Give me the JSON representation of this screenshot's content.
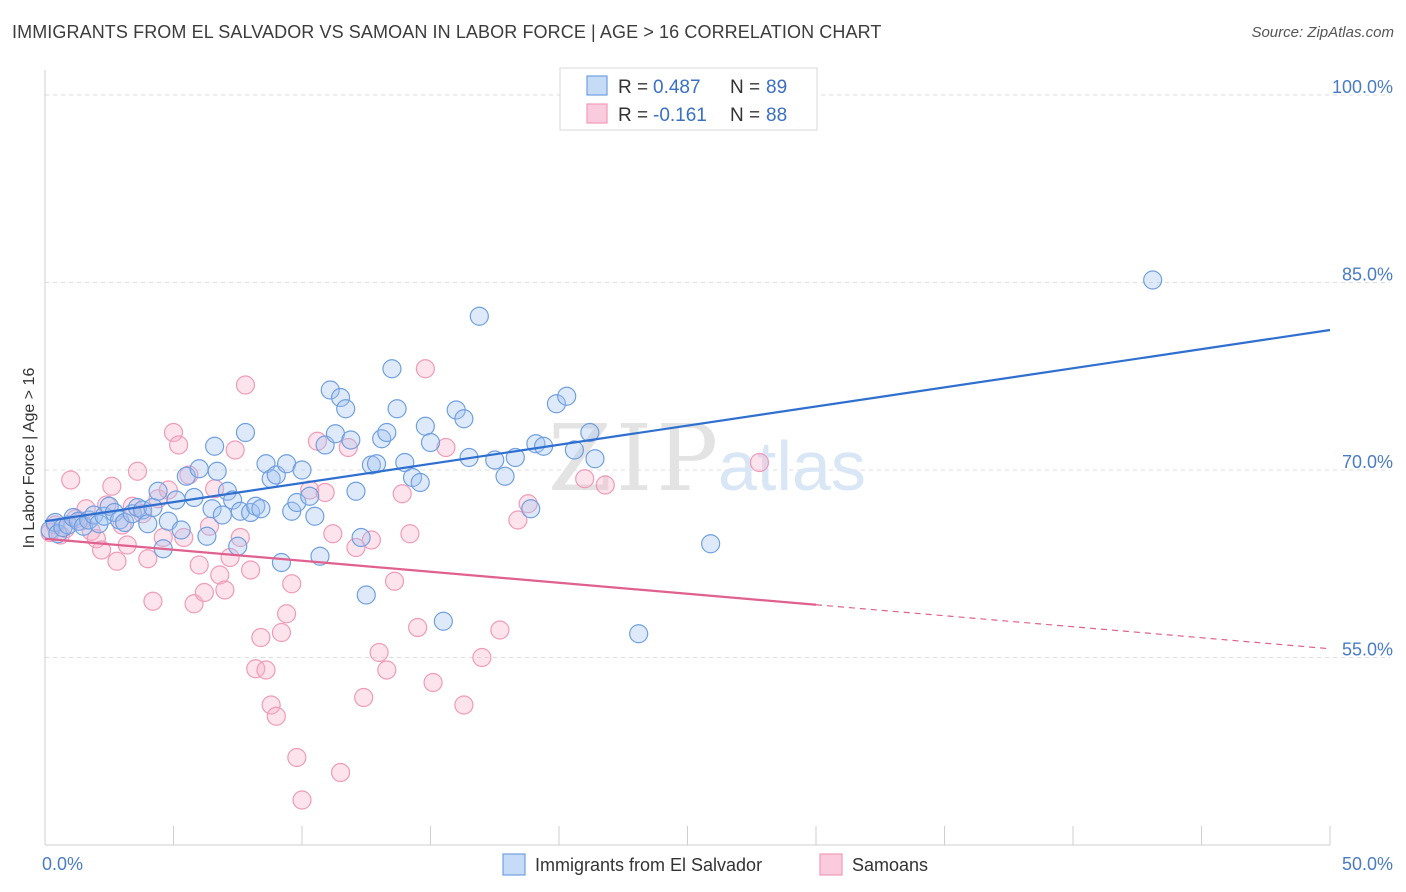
{
  "title": "IMMIGRANTS FROM EL SALVADOR VS SAMOAN IN LABOR FORCE | AGE > 16 CORRELATION CHART",
  "source": "Source: ZipAtlas.com",
  "watermark": {
    "zip": "ZIP",
    "atlas": "atlas"
  },
  "colors": {
    "blue": "#6f9fe0",
    "blue_line": "#2e6fd0",
    "pink": "#f09ab8",
    "pink_line": "#e0608e",
    "tick_text": "#4a7cc4"
  },
  "legend": {
    "rows": [
      {
        "r_label": "R = ",
        "r_value": "0.487",
        "n_label": "N = ",
        "n_value": "89"
      },
      {
        "r_label": "R = ",
        "r_value": "-0.161",
        "n_label": "N = ",
        "n_value": "88"
      }
    ]
  },
  "chart_data": {
    "type": "scatter",
    "title": "IMMIGRANTS FROM EL SALVADOR VS SAMOAN IN LABOR FORCE | AGE > 16 CORRELATION CHART",
    "xlabel": "",
    "ylabel": "In Labor Force | Age > 16",
    "xlim": [
      0,
      50
    ],
    "ylim": [
      40,
      102
    ],
    "x_tick_labels": [
      "0.0%",
      "50.0%"
    ],
    "y_ticks": [
      55,
      70,
      85,
      100
    ],
    "y_tick_labels": [
      "55.0%",
      "70.0%",
      "85.0%",
      "100.0%"
    ],
    "grid": true,
    "legend_position": "top-center",
    "series": [
      {
        "name": "Immigrants from El Salvador",
        "color": "#6f9fe0",
        "trend": {
          "x": [
            0,
            50
          ],
          "y": [
            65.9,
            81.2
          ],
          "solid_to": 50
        },
        "points": [
          [
            0.2,
            65.2
          ],
          [
            0.4,
            65.8
          ],
          [
            0.5,
            64.9
          ],
          [
            0.7,
            65.4
          ],
          [
            0.9,
            65.6
          ],
          [
            1.1,
            66.2
          ],
          [
            1.3,
            65.9
          ],
          [
            1.5,
            65.5
          ],
          [
            1.7,
            66.0
          ],
          [
            1.9,
            66.4
          ],
          [
            2.1,
            65.7
          ],
          [
            2.3,
            66.3
          ],
          [
            2.5,
            67.1
          ],
          [
            2.7,
            66.6
          ],
          [
            2.9,
            66.0
          ],
          [
            3.1,
            65.8
          ],
          [
            3.4,
            66.5
          ],
          [
            3.6,
            67.0
          ],
          [
            3.8,
            66.8
          ],
          [
            4.0,
            65.7
          ],
          [
            4.2,
            67.0
          ],
          [
            4.4,
            68.3
          ],
          [
            4.6,
            63.7
          ],
          [
            4.8,
            65.9
          ],
          [
            5.1,
            67.6
          ],
          [
            5.3,
            65.2
          ],
          [
            5.5,
            69.5
          ],
          [
            5.8,
            67.8
          ],
          [
            6.0,
            70.1
          ],
          [
            6.3,
            64.7
          ],
          [
            6.5,
            66.9
          ],
          [
            6.6,
            71.9
          ],
          [
            6.7,
            69.9
          ],
          [
            6.9,
            66.4
          ],
          [
            7.1,
            68.3
          ],
          [
            7.3,
            67.6
          ],
          [
            7.5,
            63.9
          ],
          [
            7.6,
            66.7
          ],
          [
            7.8,
            73.0
          ],
          [
            8.0,
            66.6
          ],
          [
            8.2,
            67.1
          ],
          [
            8.4,
            66.9
          ],
          [
            8.6,
            70.5
          ],
          [
            8.8,
            69.3
          ],
          [
            9.0,
            69.6
          ],
          [
            9.2,
            62.6
          ],
          [
            9.4,
            70.5
          ],
          [
            9.6,
            66.7
          ],
          [
            9.8,
            67.4
          ],
          [
            10.0,
            70.0
          ],
          [
            10.3,
            67.9
          ],
          [
            10.5,
            66.3
          ],
          [
            10.7,
            63.1
          ],
          [
            10.9,
            72.0
          ],
          [
            11.1,
            76.4
          ],
          [
            11.3,
            72.9
          ],
          [
            11.5,
            75.8
          ],
          [
            11.7,
            74.9
          ],
          [
            11.9,
            72.4
          ],
          [
            12.1,
            68.3
          ],
          [
            12.3,
            64.6
          ],
          [
            12.5,
            60.0
          ],
          [
            12.7,
            70.4
          ],
          [
            12.9,
            70.5
          ],
          [
            13.1,
            72.5
          ],
          [
            13.3,
            73.0
          ],
          [
            13.5,
            78.1
          ],
          [
            13.7,
            74.9
          ],
          [
            14.0,
            70.6
          ],
          [
            14.3,
            69.4
          ],
          [
            14.6,
            69.0
          ],
          [
            14.8,
            73.5
          ],
          [
            15.0,
            72.2
          ],
          [
            15.5,
            57.9
          ],
          [
            16.0,
            74.8
          ],
          [
            16.3,
            74.1
          ],
          [
            16.5,
            71.0
          ],
          [
            16.9,
            82.3
          ],
          [
            17.5,
            70.8
          ],
          [
            17.9,
            69.5
          ],
          [
            18.3,
            71.0
          ],
          [
            18.9,
            66.9
          ],
          [
            19.1,
            72.1
          ],
          [
            19.4,
            71.9
          ],
          [
            19.9,
            75.3
          ],
          [
            20.3,
            75.9
          ],
          [
            20.6,
            71.6
          ],
          [
            21.2,
            73.0
          ],
          [
            21.4,
            70.9
          ],
          [
            23.1,
            56.9
          ],
          [
            25.9,
            64.1
          ],
          [
            43.1,
            85.2
          ]
        ]
      },
      {
        "name": "Samoans",
        "color": "#f09ab8",
        "trend": {
          "x": [
            0,
            50
          ],
          "y": [
            64.5,
            55.7
          ],
          "solid_to": 30
        },
        "points": [
          [
            0.2,
            65.0
          ],
          [
            0.4,
            65.6
          ],
          [
            0.6,
            64.8
          ],
          [
            0.8,
            65.3
          ],
          [
            1.0,
            69.2
          ],
          [
            1.2,
            66.1
          ],
          [
            1.4,
            65.9
          ],
          [
            1.6,
            66.9
          ],
          [
            1.8,
            65.1
          ],
          [
            2.0,
            64.5
          ],
          [
            2.2,
            63.6
          ],
          [
            2.4,
            67.2
          ],
          [
            2.6,
            68.7
          ],
          [
            2.8,
            62.7
          ],
          [
            3.0,
            65.6
          ],
          [
            3.2,
            64.0
          ],
          [
            3.4,
            67.1
          ],
          [
            3.6,
            69.9
          ],
          [
            3.8,
            66.5
          ],
          [
            4.0,
            62.9
          ],
          [
            4.2,
            59.5
          ],
          [
            4.4,
            67.7
          ],
          [
            4.6,
            64.6
          ],
          [
            4.8,
            68.4
          ],
          [
            5.0,
            73.0
          ],
          [
            5.2,
            72.0
          ],
          [
            5.4,
            64.6
          ],
          [
            5.6,
            69.6
          ],
          [
            5.8,
            59.3
          ],
          [
            6.0,
            62.4
          ],
          [
            6.2,
            60.2
          ],
          [
            6.4,
            65.5
          ],
          [
            6.6,
            68.5
          ],
          [
            6.8,
            61.6
          ],
          [
            7.0,
            60.4
          ],
          [
            7.2,
            63.0
          ],
          [
            7.4,
            71.6
          ],
          [
            7.6,
            64.6
          ],
          [
            7.8,
            76.8
          ],
          [
            8.0,
            62.0
          ],
          [
            8.2,
            54.1
          ],
          [
            8.4,
            56.6
          ],
          [
            8.6,
            54.0
          ],
          [
            8.8,
            51.2
          ],
          [
            9.0,
            50.3
          ],
          [
            9.2,
            57.0
          ],
          [
            9.4,
            58.5
          ],
          [
            9.6,
            60.9
          ],
          [
            9.8,
            47.0
          ],
          [
            10.0,
            43.6
          ],
          [
            10.3,
            68.4
          ],
          [
            10.6,
            72.3
          ],
          [
            10.9,
            68.2
          ],
          [
            11.2,
            64.9
          ],
          [
            11.5,
            45.8
          ],
          [
            11.8,
            71.8
          ],
          [
            12.1,
            63.8
          ],
          [
            12.4,
            51.8
          ],
          [
            12.7,
            64.4
          ],
          [
            13.0,
            55.4
          ],
          [
            13.3,
            54.0
          ],
          [
            13.6,
            61.1
          ],
          [
            13.9,
            68.1
          ],
          [
            14.2,
            64.9
          ],
          [
            14.5,
            57.4
          ],
          [
            14.8,
            78.1
          ],
          [
            15.1,
            53.0
          ],
          [
            15.6,
            71.8
          ],
          [
            16.3,
            51.2
          ],
          [
            17.0,
            55.0
          ],
          [
            17.7,
            57.2
          ],
          [
            18.4,
            66.0
          ],
          [
            18.8,
            67.3
          ],
          [
            21.0,
            69.3
          ],
          [
            21.8,
            68.8
          ],
          [
            27.8,
            70.6
          ]
        ]
      }
    ]
  },
  "bottom_legend": [
    {
      "label": "Immigrants from El Salvador"
    },
    {
      "label": "Samoans"
    }
  ]
}
